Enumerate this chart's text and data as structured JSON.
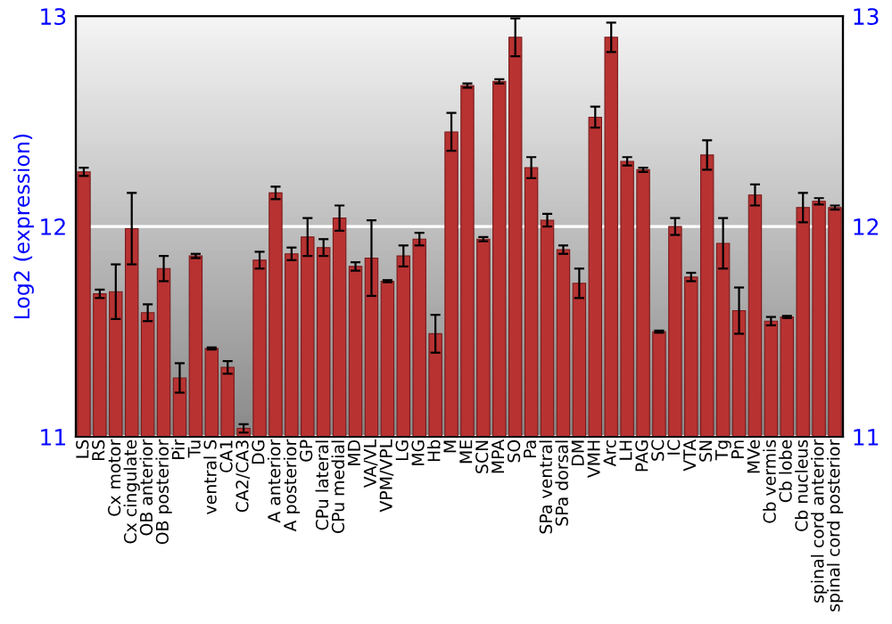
{
  "chart_data": {
    "type": "bar",
    "ylabel": "Log2 (expression)",
    "categories": [
      "LS",
      "RS",
      "Cx motor",
      "Cx cingulate",
      "OB anterior",
      "OB posterior",
      "Pir",
      "Tu",
      "ventral S",
      "CA1",
      "CA2/CA3",
      "DG",
      "A anterior",
      "A posterior",
      "GP",
      "CPu lateral",
      "CPu medial",
      "MD",
      "VA/VL",
      "VPM/VPL",
      "LG",
      "MG",
      "Hb",
      "M",
      "ME",
      "SCN",
      "MPA",
      "SO",
      "Pa",
      "SPa ventral",
      "SPa dorsal",
      "DM",
      "VMH",
      "Arc",
      "LH",
      "PAG",
      "SC",
      "IC",
      "VTA",
      "SN",
      "Tg",
      "Pn",
      "MVe",
      "Cb vermis",
      "Cb lobe",
      "Cb nucleus",
      "spinal cord anterior",
      "spinal cord posterior"
    ],
    "values": [
      12.26,
      11.68,
      11.69,
      11.99,
      11.59,
      11.8,
      11.28,
      11.86,
      11.42,
      11.33,
      11.04,
      11.84,
      12.16,
      11.87,
      11.95,
      11.9,
      12.04,
      11.81,
      11.85,
      11.74,
      11.86,
      11.94,
      11.49,
      12.45,
      12.67,
      11.94,
      12.69,
      12.9,
      12.28,
      12.03,
      11.89,
      11.73,
      12.52,
      12.9,
      12.31,
      12.27,
      11.5,
      12.0,
      11.76,
      12.34,
      11.92,
      11.6,
      12.15,
      11.55,
      11.57,
      12.09,
      12.12,
      12.09
    ],
    "errors": [
      0.02,
      0.02,
      0.13,
      0.17,
      0.04,
      0.06,
      0.07,
      0.01,
      0.005,
      0.03,
      0.02,
      0.04,
      0.03,
      0.03,
      0.09,
      0.04,
      0.06,
      0.02,
      0.18,
      0.005,
      0.05,
      0.03,
      0.09,
      0.09,
      0.01,
      0.01,
      0.01,
      0.09,
      0.05,
      0.03,
      0.02,
      0.07,
      0.05,
      0.07,
      0.02,
      0.01,
      0.005,
      0.04,
      0.02,
      0.07,
      0.12,
      0.11,
      0.05,
      0.02,
      0.005,
      0.07,
      0.015,
      0.01
    ],
    "color": "#b83232",
    "ylim": [
      11,
      13
    ],
    "yticks": [
      11,
      12,
      13
    ],
    "y2lim": [
      11,
      13
    ],
    "y2ticks": [
      11,
      12,
      13
    ],
    "grid": "y"
  }
}
